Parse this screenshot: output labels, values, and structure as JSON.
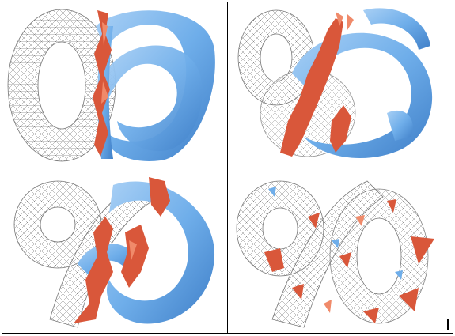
{
  "figure": {
    "panels": [
      {
        "id": "top-left",
        "description_icon": "torus-knot-icon"
      },
      {
        "id": "top-right",
        "description_icon": "torus-knot-icon"
      },
      {
        "id": "bottom-left",
        "description_icon": "torus-knot-icon"
      },
      {
        "id": "bottom-right",
        "description_icon": "torus-knot-icon"
      }
    ],
    "colors": {
      "surface_blue": "#6FAEEA",
      "surface_blue_dark": "#3F7FC8",
      "wire": "#8A8A8A",
      "fragment_red": "#D9573A",
      "fragment_red_light": "#F08A6A",
      "border": "#000000"
    }
  }
}
